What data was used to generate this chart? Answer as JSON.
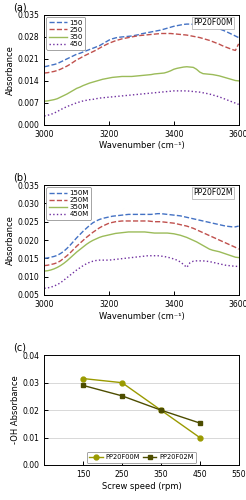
{
  "panel_a": {
    "title": "PP20F00M",
    "xlabel": "Wavenumber (cm⁻¹)",
    "ylabel": "Absorbance",
    "xlim": [
      3000,
      3600
    ],
    "ylim": [
      0.0,
      0.035
    ],
    "yticks": [
      0.0,
      0.007,
      0.014,
      0.021,
      0.028,
      0.035
    ],
    "xticks": [
      3000,
      3200,
      3400,
      3600
    ],
    "legend": [
      "150",
      "250",
      "350",
      "450"
    ],
    "colors": [
      "#4472C4",
      "#C0504D",
      "#9BBB59",
      "#7030A0"
    ],
    "linestyles": [
      "--",
      "--",
      "-",
      ":"
    ],
    "linewidths": [
      1.2,
      1.2,
      1.2,
      1.2
    ],
    "series": {
      "150": {
        "x": [
          3000,
          3010,
          3020,
          3030,
          3040,
          3050,
          3060,
          3070,
          3080,
          3090,
          3100,
          3110,
          3120,
          3130,
          3140,
          3150,
          3160,
          3170,
          3180,
          3190,
          3200,
          3210,
          3220,
          3230,
          3240,
          3250,
          3260,
          3270,
          3280,
          3290,
          3300,
          3310,
          3320,
          3330,
          3340,
          3350,
          3360,
          3370,
          3380,
          3390,
          3400,
          3410,
          3420,
          3430,
          3440,
          3450,
          3460,
          3470,
          3480,
          3490,
          3500,
          3510,
          3520,
          3530,
          3540,
          3550,
          3560,
          3570,
          3580,
          3590,
          3600
        ],
        "y": [
          0.0185,
          0.0187,
          0.019,
          0.0192,
          0.0195,
          0.02,
          0.0205,
          0.021,
          0.0215,
          0.022,
          0.0225,
          0.0228,
          0.0232,
          0.0236,
          0.024,
          0.0244,
          0.0248,
          0.0252,
          0.0258,
          0.0264,
          0.027,
          0.0274,
          0.0277,
          0.0279,
          0.028,
          0.0281,
          0.0282,
          0.0283,
          0.0285,
          0.0287,
          0.029,
          0.0292,
          0.0294,
          0.0296,
          0.0298,
          0.03,
          0.0302,
          0.0305,
          0.0308,
          0.0311,
          0.0314,
          0.0316,
          0.0318,
          0.032,
          0.0321,
          0.0321,
          0.032,
          0.0319,
          0.0318,
          0.0317,
          0.0316,
          0.0314,
          0.0312,
          0.0309,
          0.0306,
          0.0302,
          0.0298,
          0.0293,
          0.0288,
          0.0283,
          0.0278
        ]
      },
      "250": {
        "x": [
          3000,
          3010,
          3020,
          3030,
          3040,
          3050,
          3060,
          3070,
          3080,
          3090,
          3100,
          3110,
          3120,
          3130,
          3140,
          3150,
          3160,
          3170,
          3180,
          3190,
          3200,
          3210,
          3220,
          3230,
          3240,
          3250,
          3260,
          3270,
          3280,
          3290,
          3300,
          3310,
          3320,
          3330,
          3340,
          3350,
          3360,
          3370,
          3380,
          3390,
          3400,
          3410,
          3420,
          3430,
          3440,
          3450,
          3460,
          3470,
          3480,
          3490,
          3500,
          3510,
          3520,
          3530,
          3540,
          3550,
          3560,
          3570,
          3580,
          3590,
          3600
        ],
        "y": [
          0.0165,
          0.0166,
          0.0168,
          0.017,
          0.0173,
          0.0177,
          0.0182,
          0.0187,
          0.0193,
          0.02,
          0.0207,
          0.0212,
          0.0218,
          0.0223,
          0.0228,
          0.0233,
          0.0238,
          0.0244,
          0.025,
          0.0255,
          0.026,
          0.0264,
          0.0268,
          0.0271,
          0.0274,
          0.0276,
          0.0278,
          0.028,
          0.0282,
          0.0284,
          0.0285,
          0.0286,
          0.0287,
          0.0288,
          0.0289,
          0.029,
          0.0291,
          0.0291,
          0.0291,
          0.0291,
          0.029,
          0.0289,
          0.0288,
          0.0287,
          0.0286,
          0.0284,
          0.0282,
          0.028,
          0.0278,
          0.0275,
          0.0272,
          0.0269,
          0.0265,
          0.0261,
          0.0257,
          0.0252,
          0.0248,
          0.0244,
          0.024,
          0.0237,
          0.0258
        ]
      },
      "350": {
        "x": [
          3000,
          3010,
          3020,
          3030,
          3040,
          3050,
          3060,
          3070,
          3080,
          3090,
          3100,
          3110,
          3120,
          3130,
          3140,
          3150,
          3160,
          3170,
          3180,
          3190,
          3200,
          3210,
          3220,
          3230,
          3240,
          3250,
          3260,
          3270,
          3280,
          3290,
          3300,
          3310,
          3320,
          3330,
          3340,
          3350,
          3360,
          3370,
          3380,
          3390,
          3400,
          3410,
          3420,
          3430,
          3440,
          3450,
          3460,
          3470,
          3480,
          3490,
          3500,
          3510,
          3520,
          3530,
          3540,
          3550,
          3560,
          3570,
          3580,
          3590,
          3600
        ],
        "y": [
          0.0075,
          0.0076,
          0.0078,
          0.008,
          0.0083,
          0.0088,
          0.0093,
          0.0098,
          0.0104,
          0.011,
          0.0116,
          0.012,
          0.0125,
          0.0129,
          0.0133,
          0.0136,
          0.0139,
          0.0142,
          0.0145,
          0.0147,
          0.0149,
          0.0151,
          0.0152,
          0.0153,
          0.0154,
          0.0154,
          0.0154,
          0.0154,
          0.0155,
          0.0156,
          0.0157,
          0.0158,
          0.0159,
          0.016,
          0.0162,
          0.0163,
          0.0164,
          0.0165,
          0.0168,
          0.0172,
          0.0177,
          0.018,
          0.0182,
          0.0184,
          0.0185,
          0.0184,
          0.0183,
          0.0177,
          0.0168,
          0.0163,
          0.0162,
          0.0161,
          0.016,
          0.0158,
          0.0156,
          0.0153,
          0.015,
          0.0147,
          0.0144,
          0.0141,
          0.014
        ]
      },
      "450": {
        "x": [
          3000,
          3010,
          3020,
          3030,
          3040,
          3050,
          3060,
          3070,
          3080,
          3090,
          3100,
          3110,
          3120,
          3130,
          3140,
          3150,
          3160,
          3170,
          3180,
          3190,
          3200,
          3210,
          3220,
          3230,
          3240,
          3250,
          3260,
          3270,
          3280,
          3290,
          3300,
          3310,
          3320,
          3330,
          3340,
          3350,
          3360,
          3370,
          3380,
          3390,
          3400,
          3410,
          3420,
          3430,
          3440,
          3450,
          3460,
          3470,
          3480,
          3490,
          3500,
          3510,
          3520,
          3530,
          3540,
          3550,
          3560,
          3570,
          3580,
          3590,
          3600
        ],
        "y": [
          0.0028,
          0.003,
          0.0033,
          0.0037,
          0.0042,
          0.0048,
          0.0053,
          0.0058,
          0.0062,
          0.0066,
          0.007,
          0.0073,
          0.0076,
          0.0078,
          0.008,
          0.0081,
          0.0083,
          0.0085,
          0.0086,
          0.0087,
          0.0088,
          0.0089,
          0.009,
          0.0091,
          0.0092,
          0.0093,
          0.0094,
          0.0095,
          0.0096,
          0.0097,
          0.0098,
          0.0099,
          0.01,
          0.0101,
          0.0102,
          0.0103,
          0.0104,
          0.0105,
          0.0106,
          0.0107,
          0.0108,
          0.0108,
          0.0108,
          0.0108,
          0.0108,
          0.0107,
          0.0106,
          0.0105,
          0.0104,
          0.0102,
          0.01,
          0.0098,
          0.0095,
          0.0092,
          0.0089,
          0.0085,
          0.0081,
          0.0077,
          0.0073,
          0.0069,
          0.0065
        ]
      }
    }
  },
  "panel_b": {
    "title": "PP20F02M",
    "xlabel": "Wavenumber (cm⁻¹)",
    "ylabel": "Absorbance",
    "xlim": [
      3000,
      3600
    ],
    "ylim": [
      0.005,
      0.035
    ],
    "yticks": [
      0.005,
      0.01,
      0.015,
      0.02,
      0.025,
      0.03,
      0.035
    ],
    "xticks": [
      3000,
      3200,
      3400,
      3600
    ],
    "legend": [
      "150M",
      "250M",
      "350M",
      "450M"
    ],
    "colors": [
      "#4472C4",
      "#C0504D",
      "#9BBB59",
      "#7030A0"
    ],
    "linestyles": [
      "--",
      "--",
      "-",
      ":"
    ],
    "series": {
      "150M": {
        "x": [
          3000,
          3010,
          3020,
          3030,
          3040,
          3050,
          3060,
          3070,
          3080,
          3090,
          3100,
          3110,
          3120,
          3130,
          3140,
          3150,
          3160,
          3170,
          3180,
          3190,
          3200,
          3210,
          3220,
          3230,
          3240,
          3250,
          3260,
          3270,
          3280,
          3290,
          3300,
          3310,
          3320,
          3330,
          3340,
          3350,
          3360,
          3370,
          3380,
          3390,
          3400,
          3410,
          3420,
          3430,
          3440,
          3450,
          3460,
          3470,
          3480,
          3490,
          3500,
          3510,
          3520,
          3530,
          3540,
          3550,
          3560,
          3570,
          3580,
          3590,
          3600
        ],
        "y": [
          0.015,
          0.0151,
          0.0153,
          0.0155,
          0.0158,
          0.0163,
          0.0169,
          0.0177,
          0.0186,
          0.0196,
          0.0206,
          0.0215,
          0.0224,
          0.0232,
          0.024,
          0.0247,
          0.0252,
          0.0256,
          0.0259,
          0.0261,
          0.0263,
          0.0265,
          0.0266,
          0.0267,
          0.0268,
          0.0269,
          0.027,
          0.027,
          0.027,
          0.027,
          0.027,
          0.027,
          0.027,
          0.027,
          0.0271,
          0.0272,
          0.0272,
          0.0271,
          0.027,
          0.0269,
          0.0268,
          0.0267,
          0.0266,
          0.0264,
          0.0262,
          0.026,
          0.0258,
          0.0256,
          0.0254,
          0.0252,
          0.025,
          0.0248,
          0.0246,
          0.0244,
          0.0242,
          0.024,
          0.0238,
          0.0237,
          0.0236,
          0.0236,
          0.0238
        ]
      },
      "250M": {
        "x": [
          3000,
          3010,
          3020,
          3030,
          3040,
          3050,
          3060,
          3070,
          3080,
          3090,
          3100,
          3110,
          3120,
          3130,
          3140,
          3150,
          3160,
          3170,
          3180,
          3190,
          3200,
          3210,
          3220,
          3230,
          3240,
          3250,
          3260,
          3270,
          3280,
          3290,
          3300,
          3310,
          3320,
          3330,
          3340,
          3350,
          3360,
          3370,
          3380,
          3390,
          3400,
          3410,
          3420,
          3430,
          3440,
          3450,
          3460,
          3470,
          3480,
          3490,
          3500,
          3510,
          3520,
          3530,
          3540,
          3550,
          3560,
          3570,
          3580,
          3590,
          3600
        ],
        "y": [
          0.013,
          0.0131,
          0.0133,
          0.0135,
          0.0138,
          0.0143,
          0.015,
          0.0157,
          0.0165,
          0.0174,
          0.0183,
          0.0191,
          0.0199,
          0.0207,
          0.0214,
          0.0221,
          0.0227,
          0.0233,
          0.0238,
          0.0242,
          0.0246,
          0.0248,
          0.025,
          0.0251,
          0.0252,
          0.0252,
          0.0252,
          0.0252,
          0.0252,
          0.0252,
          0.0252,
          0.0252,
          0.0252,
          0.0251,
          0.025,
          0.025,
          0.025,
          0.0249,
          0.0248,
          0.0247,
          0.0246,
          0.0244,
          0.0242,
          0.024,
          0.0238,
          0.0235,
          0.0232,
          0.0228,
          0.0224,
          0.022,
          0.0216,
          0.0212,
          0.0208,
          0.0204,
          0.02,
          0.0196,
          0.0192,
          0.0188,
          0.0184,
          0.018,
          0.0175
        ]
      },
      "350M": {
        "x": [
          3000,
          3010,
          3020,
          3030,
          3040,
          3050,
          3060,
          3070,
          3080,
          3090,
          3100,
          3110,
          3120,
          3130,
          3140,
          3150,
          3160,
          3170,
          3180,
          3190,
          3200,
          3210,
          3220,
          3230,
          3240,
          3250,
          3260,
          3270,
          3280,
          3290,
          3300,
          3310,
          3320,
          3330,
          3340,
          3350,
          3360,
          3370,
          3380,
          3390,
          3400,
          3410,
          3420,
          3430,
          3440,
          3450,
          3460,
          3470,
          3480,
          3490,
          3500,
          3510,
          3520,
          3530,
          3540,
          3550,
          3560,
          3570,
          3580,
          3590,
          3600
        ],
        "y": [
          0.0115,
          0.0116,
          0.0118,
          0.0121,
          0.0125,
          0.013,
          0.0136,
          0.0143,
          0.0151,
          0.0159,
          0.0167,
          0.0174,
          0.0181,
          0.0188,
          0.0194,
          0.0199,
          0.0203,
          0.0207,
          0.021,
          0.0212,
          0.0214,
          0.0216,
          0.0218,
          0.0219,
          0.022,
          0.0221,
          0.0222,
          0.0222,
          0.0222,
          0.0222,
          0.0222,
          0.0222,
          0.0221,
          0.022,
          0.0219,
          0.0219,
          0.0219,
          0.0219,
          0.0219,
          0.0218,
          0.0217,
          0.0215,
          0.0213,
          0.021,
          0.0207,
          0.0203,
          0.0199,
          0.0195,
          0.019,
          0.0185,
          0.018,
          0.0175,
          0.0172,
          0.017,
          0.0168,
          0.0165,
          0.0162,
          0.0159,
          0.0156,
          0.0153,
          0.0152
        ]
      },
      "450M": {
        "x": [
          3000,
          3010,
          3020,
          3030,
          3040,
          3050,
          3060,
          3070,
          3080,
          3090,
          3100,
          3110,
          3120,
          3130,
          3140,
          3150,
          3160,
          3170,
          3180,
          3190,
          3200,
          3210,
          3220,
          3230,
          3240,
          3250,
          3260,
          3270,
          3280,
          3290,
          3300,
          3310,
          3320,
          3330,
          3340,
          3350,
          3360,
          3370,
          3380,
          3390,
          3400,
          3410,
          3420,
          3430,
          3440,
          3450,
          3460,
          3470,
          3480,
          3490,
          3500,
          3510,
          3520,
          3530,
          3540,
          3550,
          3560,
          3570,
          3580,
          3590,
          3600
        ],
        "y": [
          0.0068,
          0.0069,
          0.0071,
          0.0074,
          0.0078,
          0.0083,
          0.009,
          0.0097,
          0.0104,
          0.0111,
          0.0118,
          0.0124,
          0.013,
          0.0135,
          0.0139,
          0.0142,
          0.0144,
          0.0145,
          0.0145,
          0.0145,
          0.0145,
          0.0146,
          0.0147,
          0.0148,
          0.0149,
          0.015,
          0.0151,
          0.0152,
          0.0153,
          0.0154,
          0.0155,
          0.0156,
          0.0157,
          0.0157,
          0.0157,
          0.0157,
          0.0156,
          0.0155,
          0.0153,
          0.0151,
          0.0148,
          0.0145,
          0.014,
          0.0133,
          0.0125,
          0.0138,
          0.0142,
          0.0143,
          0.0143,
          0.0143,
          0.0142,
          0.0141,
          0.0139,
          0.0137,
          0.0135,
          0.0133,
          0.0131,
          0.013,
          0.0129,
          0.0128,
          0.0128
        ]
      }
    }
  },
  "panel_c": {
    "xlabel": "Screw speed (rpm)",
    "ylabel": "-OH Absorbance",
    "xlim": [
      50,
      550
    ],
    "ylim": [
      0.0,
      0.04
    ],
    "yticks": [
      0.0,
      0.01,
      0.02,
      0.03,
      0.04
    ],
    "xticks": [
      150,
      250,
      350,
      450,
      550
    ],
    "xticklabels": [
      "150",
      "250",
      "350",
      "450",
      "550"
    ],
    "series": {
      "PP20F00M": {
        "x": [
          150,
          250,
          350,
          450
        ],
        "y": [
          0.0315,
          0.03,
          0.02,
          0.01
        ],
        "color": "#9a9a00",
        "marker": "o",
        "markercolor": "#9a9a00",
        "linestyle": "-"
      },
      "PP20F02M": {
        "x": [
          150,
          250,
          350,
          450
        ],
        "y": [
          0.029,
          0.0252,
          0.02,
          0.0153
        ],
        "color": "#4d4d00",
        "marker": "s",
        "markercolor": "#4d4d00",
        "linestyle": "-"
      }
    },
    "legend": [
      "PP20F00M",
      "PP20F02M"
    ]
  }
}
